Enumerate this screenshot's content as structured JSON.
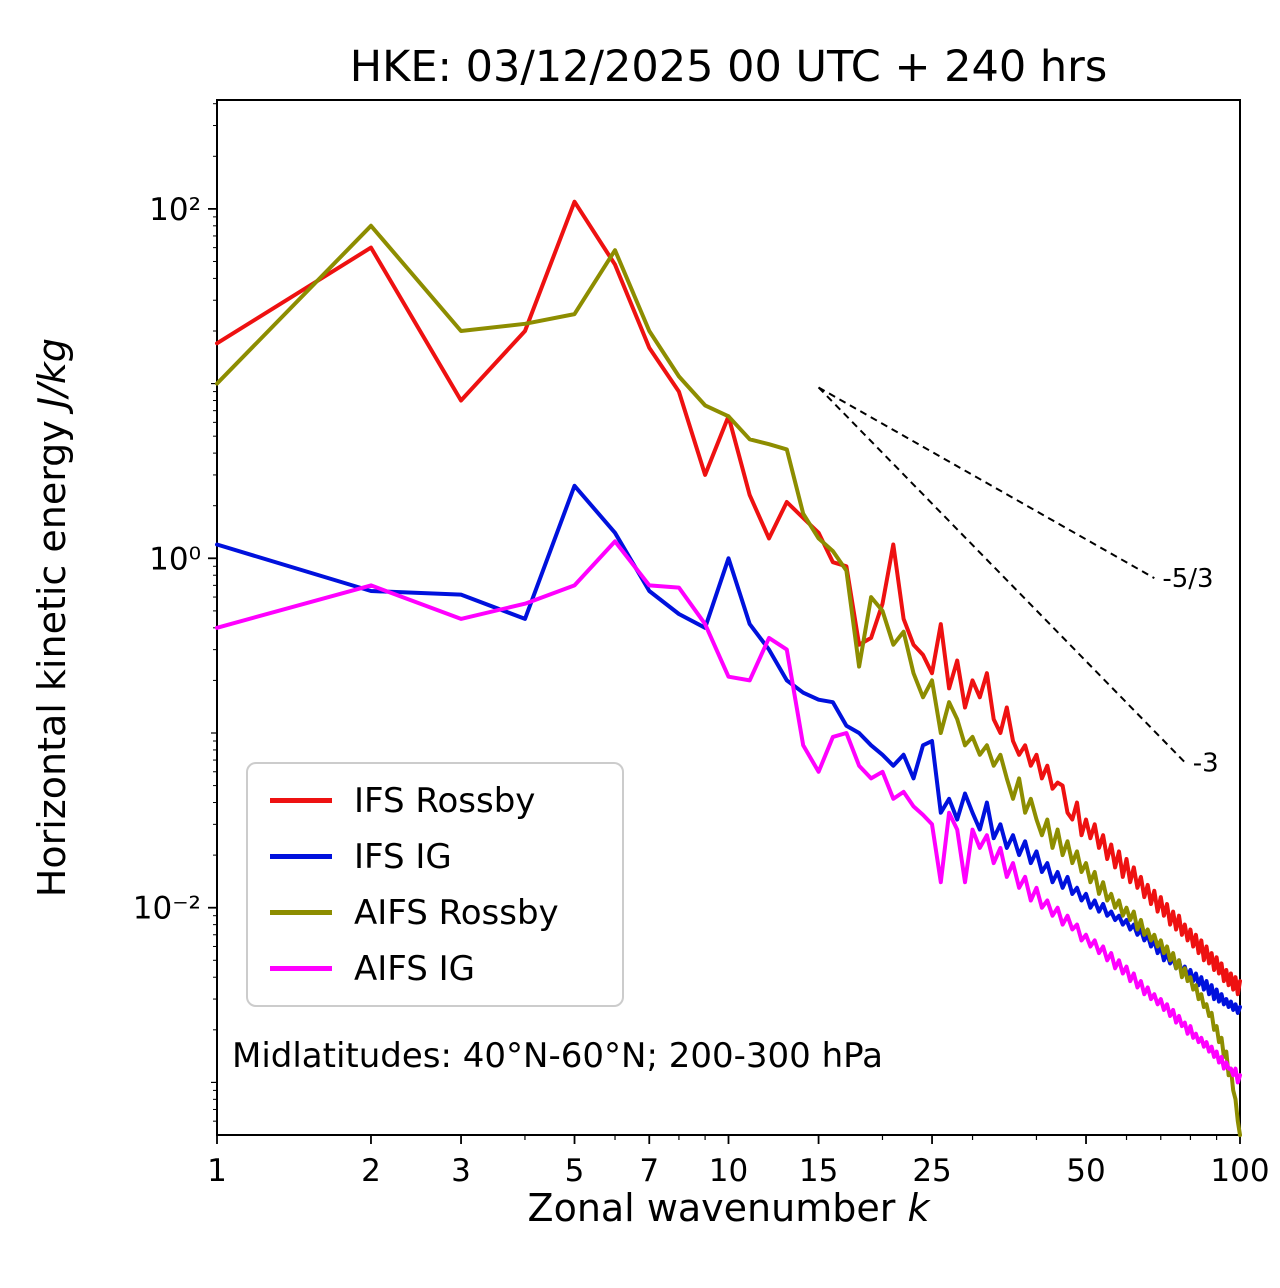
{
  "title": "HKE: 03/12/2025 00 UTC + 240 hrs",
  "xlabel_text": "Zonal wavenumber ",
  "xlabel_math": "k",
  "ylabel_text": "Horizontal kinetic energy ",
  "ylabel_math": "J/kg",
  "annotation": "Midlatitudes: 40°N-60°N; 200-300 hPa",
  "chart_data": {
    "type": "line",
    "title": "HKE: 03/12/2025 00 UTC + 240 hrs",
    "xlabel": "Zonal wavenumber k",
    "ylabel": "Horizontal kinetic energy J/kg",
    "xscale": "log",
    "yscale": "log",
    "xlim": [
      1,
      100
    ],
    "ylim": [
      0.0005,
      420
    ],
    "grid": false,
    "legend_position": "lower left",
    "xtick_values": [
      1,
      2,
      3,
      5,
      7,
      10,
      15,
      25,
      50,
      100
    ],
    "xtick_labels": [
      "1",
      "2",
      "3",
      "5",
      "7",
      "10",
      "15",
      "25",
      "50",
      "100"
    ],
    "ytick_values": [
      100,
      1,
      0.01
    ],
    "ytick_labels": [
      "10²",
      "10⁰",
      "10⁻²"
    ],
    "x_minor_ticks": [
      4,
      6,
      8,
      9,
      20,
      30,
      40,
      60,
      70,
      80,
      90
    ],
    "y_minor_decades": [
      10,
      0.1,
      0.001
    ],
    "x": [
      1,
      2,
      3,
      4,
      5,
      6,
      7,
      8,
      9,
      10,
      11,
      12,
      13,
      14,
      15,
      16,
      17,
      18,
      19,
      20,
      21,
      22,
      23,
      24,
      25,
      26,
      27,
      28,
      29,
      30,
      31,
      32,
      33,
      34,
      35,
      36,
      37,
      38,
      39,
      40,
      41,
      42,
      43,
      44,
      45,
      46,
      47,
      48,
      49,
      50,
      51,
      52,
      53,
      54,
      55,
      56,
      57,
      58,
      59,
      60,
      61,
      62,
      63,
      64,
      65,
      66,
      67,
      68,
      69,
      70,
      71,
      72,
      73,
      74,
      75,
      76,
      77,
      78,
      79,
      80,
      81,
      82,
      83,
      84,
      85,
      86,
      87,
      88,
      89,
      90,
      91,
      92,
      93,
      94,
      95,
      96,
      97,
      98,
      99,
      100
    ],
    "series": [
      {
        "name": "IFS Rossby",
        "color": "#ee1111",
        "values": [
          17,
          60,
          8,
          20,
          110,
          48,
          16,
          9,
          3.0,
          6.5,
          2.3,
          1.3,
          2.1,
          1.7,
          1.4,
          0.95,
          0.9,
          0.32,
          0.35,
          0.55,
          1.2,
          0.45,
          0.32,
          0.28,
          0.22,
          0.42,
          0.18,
          0.26,
          0.14,
          0.2,
          0.16,
          0.22,
          0.12,
          0.1,
          0.14,
          0.09,
          0.075,
          0.085,
          0.065,
          0.075,
          0.055,
          0.065,
          0.048,
          0.052,
          0.05,
          0.035,
          0.032,
          0.04,
          0.026,
          0.032,
          0.025,
          0.03,
          0.022,
          0.026,
          0.019,
          0.023,
          0.017,
          0.021,
          0.015,
          0.019,
          0.014,
          0.017,
          0.013,
          0.015,
          0.0115,
          0.0135,
          0.0105,
          0.0125,
          0.0095,
          0.0115,
          0.009,
          0.0105,
          0.008,
          0.0095,
          0.0075,
          0.009,
          0.007,
          0.008,
          0.0065,
          0.0075,
          0.006,
          0.007,
          0.0055,
          0.0065,
          0.005,
          0.006,
          0.0048,
          0.0055,
          0.0044,
          0.0052,
          0.0042,
          0.0048,
          0.0038,
          0.0044,
          0.0036,
          0.0042,
          0.0034,
          0.004,
          0.0032,
          0.0038
        ]
      },
      {
        "name": "IFS IG",
        "color": "#0011dd",
        "values": [
          1.2,
          0.65,
          0.62,
          0.45,
          2.6,
          1.4,
          0.65,
          0.48,
          0.4,
          1.0,
          0.42,
          0.3,
          0.2,
          0.17,
          0.155,
          0.15,
          0.11,
          0.1,
          0.085,
          0.075,
          0.065,
          0.075,
          0.055,
          0.085,
          0.09,
          0.035,
          0.042,
          0.032,
          0.045,
          0.035,
          0.028,
          0.04,
          0.025,
          0.03,
          0.022,
          0.026,
          0.02,
          0.024,
          0.018,
          0.021,
          0.016,
          0.018,
          0.014,
          0.016,
          0.013,
          0.015,
          0.012,
          0.013,
          0.011,
          0.012,
          0.01,
          0.011,
          0.0095,
          0.0105,
          0.009,
          0.0095,
          0.0085,
          0.009,
          0.008,
          0.0085,
          0.0075,
          0.008,
          0.007,
          0.0075,
          0.0065,
          0.007,
          0.006,
          0.0065,
          0.0055,
          0.006,
          0.005,
          0.0055,
          0.0048,
          0.0052,
          0.0045,
          0.005,
          0.0042,
          0.0046,
          0.004,
          0.0044,
          0.0038,
          0.0042,
          0.0036,
          0.004,
          0.0034,
          0.0038,
          0.0032,
          0.0036,
          0.003,
          0.0034,
          0.0029,
          0.0032,
          0.0028,
          0.003,
          0.0027,
          0.0029,
          0.0026,
          0.0028,
          0.0025,
          0.0027
        ]
      },
      {
        "name": "AIFS Rossby",
        "color": "#8d8d00",
        "values": [
          10,
          80,
          20,
          22,
          25,
          58,
          20,
          11,
          7.5,
          6.5,
          4.8,
          4.5,
          4.2,
          1.8,
          1.3,
          1.1,
          0.85,
          0.24,
          0.6,
          0.5,
          0.32,
          0.38,
          0.22,
          0.16,
          0.2,
          0.1,
          0.15,
          0.12,
          0.085,
          0.095,
          0.075,
          0.085,
          0.065,
          0.075,
          0.055,
          0.042,
          0.055,
          0.035,
          0.042,
          0.032,
          0.026,
          0.032,
          0.022,
          0.028,
          0.02,
          0.024,
          0.018,
          0.021,
          0.016,
          0.018,
          0.014,
          0.016,
          0.012,
          0.014,
          0.011,
          0.012,
          0.01,
          0.011,
          0.009,
          0.01,
          0.0085,
          0.0095,
          0.0075,
          0.0085,
          0.007,
          0.0075,
          0.0065,
          0.007,
          0.006,
          0.0065,
          0.0055,
          0.006,
          0.005,
          0.0055,
          0.0045,
          0.005,
          0.004,
          0.0045,
          0.0038,
          0.004,
          0.0034,
          0.0036,
          0.003,
          0.0032,
          0.0027,
          0.0028,
          0.0024,
          0.0025,
          0.002,
          0.0021,
          0.0017,
          0.0018,
          0.0014,
          0.0015,
          0.0011,
          0.0012,
          0.0009,
          0.0008,
          0.0006,
          0.0005
        ]
      },
      {
        "name": "AIFS IG",
        "color": "#ff00ff",
        "values": [
          0.4,
          0.7,
          0.45,
          0.55,
          0.7,
          1.25,
          0.7,
          0.68,
          0.42,
          0.21,
          0.2,
          0.35,
          0.3,
          0.085,
          0.06,
          0.095,
          0.1,
          0.065,
          0.055,
          0.06,
          0.042,
          0.046,
          0.038,
          0.034,
          0.03,
          0.014,
          0.035,
          0.028,
          0.014,
          0.028,
          0.022,
          0.026,
          0.018,
          0.022,
          0.015,
          0.018,
          0.013,
          0.015,
          0.011,
          0.013,
          0.01,
          0.011,
          0.009,
          0.01,
          0.008,
          0.009,
          0.0075,
          0.008,
          0.0065,
          0.007,
          0.006,
          0.0065,
          0.0055,
          0.006,
          0.005,
          0.0055,
          0.0045,
          0.005,
          0.0042,
          0.0046,
          0.0038,
          0.0042,
          0.0035,
          0.0038,
          0.0032,
          0.0035,
          0.003,
          0.0032,
          0.0028,
          0.003,
          0.0026,
          0.0028,
          0.0024,
          0.0026,
          0.0022,
          0.0024,
          0.0021,
          0.0022,
          0.0019,
          0.0021,
          0.0018,
          0.0019,
          0.0017,
          0.0018,
          0.0016,
          0.0017,
          0.0015,
          0.0016,
          0.0014,
          0.0015,
          0.0013,
          0.0014,
          0.0012,
          0.0013,
          0.0012,
          0.0012,
          0.0011,
          0.0012,
          0.001,
          0.0011
        ]
      }
    ],
    "reference_lines": [
      {
        "label": "-5/3",
        "slope": "-5/3",
        "x1": 15,
        "y1": 9.5,
        "x2": 68,
        "y2": 0.77
      },
      {
        "label": "-3",
        "slope": "-3",
        "x1": 15,
        "y1": 9.5,
        "x2": 78,
        "y2": 0.068
      }
    ]
  }
}
